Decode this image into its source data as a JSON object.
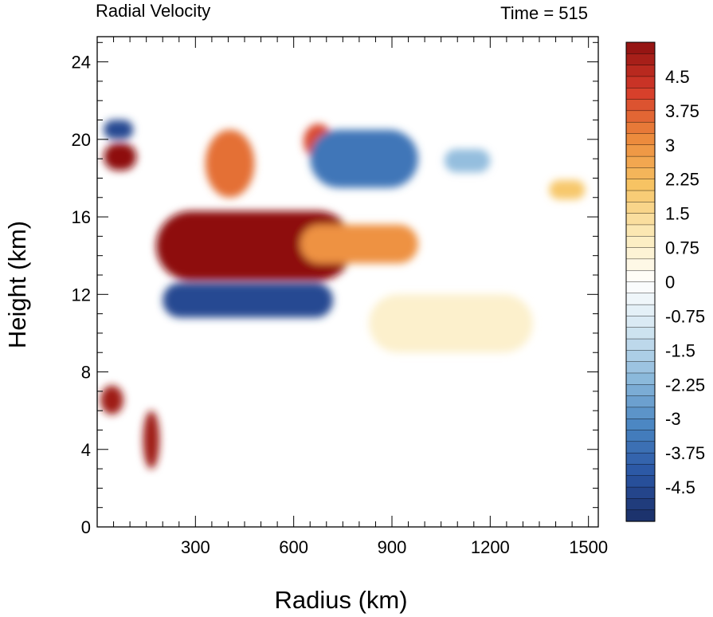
{
  "chart_data": {
    "type": "heatmap",
    "title": "Radial Velocity",
    "right_title": "Time = 515",
    "xlabel": "Radius (km)",
    "ylabel": "Height (km)",
    "xlim": [
      0,
      1530
    ],
    "ylim": [
      0,
      25.3
    ],
    "x_ticks": [
      300,
      600,
      900,
      1200,
      1500
    ],
    "y_ticks": [
      0,
      4,
      8,
      12,
      16,
      20,
      24
    ],
    "colorbar": {
      "min": -5.25,
      "max": 5.25,
      "step": 0.25,
      "label_values": [
        "4.5",
        "3.75",
        "3",
        "2.25",
        "1.5",
        "0.75",
        "0",
        "-0.75",
        "-1.5",
        "-2.25",
        "-3",
        "-3.75",
        "-4.5"
      ],
      "colormap": [
        "#1a2e66",
        "#2a55a4",
        "#4a86c2",
        "#8dbadc",
        "#d2e6f2",
        "#ffffff",
        "#fbeab8",
        "#f7c464",
        "#ec8a3c",
        "#d53a2a",
        "#8e1010"
      ]
    },
    "features": [
      {
        "name": "upper-level outflow jet",
        "x_range": [
          180,
          780
        ],
        "z_range": [
          12.7,
          16.3
        ],
        "value": 5.5
      },
      {
        "name": "jet tail",
        "x_range": [
          620,
          980
        ],
        "z_range": [
          13.6,
          15.6
        ],
        "value": 3.0
      },
      {
        "name": "inflow layer below jet",
        "x_range": [
          200,
          720
        ],
        "z_range": [
          10.8,
          12.6
        ],
        "value": -4.5
      },
      {
        "name": "upper outflow cell near axis",
        "x_range": [
          20,
          120
        ],
        "z_range": [
          18.4,
          19.8
        ],
        "value": 5.5
      },
      {
        "name": "upper inflow cell near axis",
        "x_range": [
          20,
          110
        ],
        "z_range": [
          20,
          21
        ],
        "value": -4.5
      },
      {
        "name": "mid-level outflow cell",
        "x_range": [
          10,
          80
        ],
        "z_range": [
          5.8,
          7.3
        ],
        "value": 5.0
      },
      {
        "name": "eyewall outflow band",
        "x_range": [
          140,
          190
        ],
        "z_range": [
          3,
          6
        ],
        "value": 5.0
      },
      {
        "name": "tilted band 1",
        "x_range": [
          330,
          480
        ],
        "z_range": [
          17,
          20.5
        ],
        "value": 3.5
      },
      {
        "name": "tilted band 2",
        "x_range": [
          630,
          720
        ],
        "z_range": [
          19,
          20.8
        ],
        "value": 4.0
      },
      {
        "name": "inflow band upper",
        "x_range": [
          650,
          980
        ],
        "z_range": [
          17.5,
          20.5
        ],
        "value": -3.5
      },
      {
        "name": "weak mid-level outflow",
        "x_range": [
          830,
          1330
        ],
        "z_range": [
          9,
          12
        ],
        "value": 0.75
      },
      {
        "name": "outer outflow",
        "x_range": [
          1380,
          1490
        ],
        "z_range": [
          16.9,
          17.9
        ],
        "value": 2.0
      },
      {
        "name": "outer inflow",
        "x_range": [
          1060,
          1200
        ],
        "z_range": [
          18.3,
          19.5
        ],
        "value": -2.0
      }
    ]
  }
}
